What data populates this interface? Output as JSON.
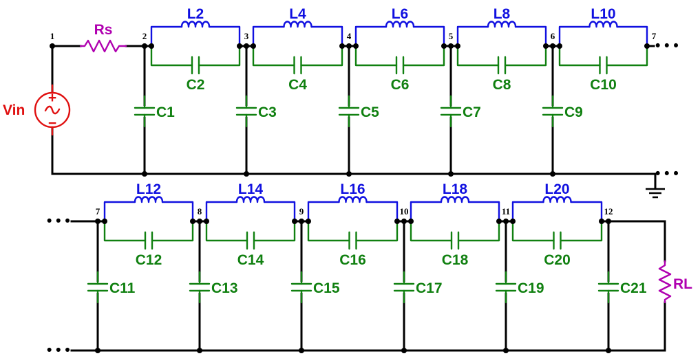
{
  "colors": {
    "wire": "#000000",
    "inductor": "#1010e0",
    "capacitor": "#108010",
    "resistor": "#b000b0",
    "source": "#e01010"
  },
  "source": {
    "label": "Vin",
    "plus": "+",
    "minus": "−",
    "wave": "~"
  },
  "rs": {
    "label": "Rs"
  },
  "rl": {
    "label": "RL"
  },
  "continuation": "• • •",
  "row1": {
    "nodes": [
      "1",
      "2",
      "3",
      "4",
      "5",
      "6",
      "7"
    ],
    "shunt_caps": [
      "C1",
      "C3",
      "C5",
      "C7",
      "C9"
    ],
    "tanks": [
      {
        "inductor": "L2",
        "capacitor": "C2"
      },
      {
        "inductor": "L4",
        "capacitor": "C4"
      },
      {
        "inductor": "L6",
        "capacitor": "C6"
      },
      {
        "inductor": "L8",
        "capacitor": "C8"
      },
      {
        "inductor": "L10",
        "capacitor": "C10"
      }
    ]
  },
  "row2": {
    "nodes": [
      "7",
      "8",
      "9",
      "10",
      "11",
      "12"
    ],
    "shunt_caps": [
      "C11",
      "C13",
      "C15",
      "C17",
      "C19",
      "C21"
    ],
    "tanks": [
      {
        "inductor": "L12",
        "capacitor": "C12"
      },
      {
        "inductor": "L14",
        "capacitor": "C14"
      },
      {
        "inductor": "L16",
        "capacitor": "C16"
      },
      {
        "inductor": "L18",
        "capacitor": "C18"
      },
      {
        "inductor": "L20",
        "capacitor": "C20"
      }
    ]
  }
}
